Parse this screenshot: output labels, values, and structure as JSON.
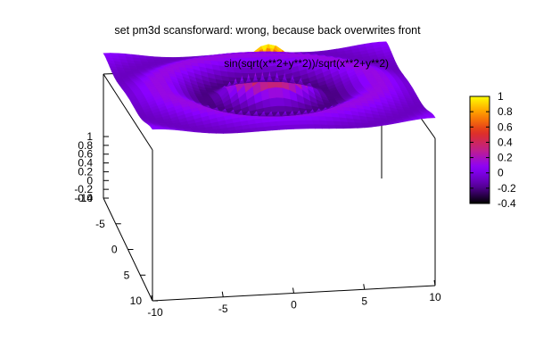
{
  "chart_data": {
    "type": "surface",
    "title": "set pm3d scansforward: wrong, because back overwrites front",
    "key_title": "sin(sqrt(x**2+y**2))/sqrt(x**2+y**2)",
    "function": "sin(sqrt(x**2+y**2))/sqrt(x**2+y**2)",
    "xlim": [
      -10,
      10
    ],
    "ylim": [
      -10,
      10
    ],
    "zlim": [
      -0.4,
      1
    ],
    "cbrange": [
      -0.4,
      1
    ],
    "x_ticks": [
      "-10",
      "-5",
      "0",
      "5",
      "10"
    ],
    "y_ticks": [
      "-10",
      "-5",
      "0",
      "5",
      "10"
    ],
    "z_ticks": [
      "1",
      "0.8",
      "0.6",
      "0.4",
      "0.2",
      "0",
      "-0.2",
      "-0.4"
    ],
    "cb_ticks": [
      "1",
      "0.8",
      "0.6",
      "0.4",
      "0.2",
      "0",
      "-0.2",
      "-0.4"
    ],
    "palette": [
      "#000000",
      "#5a00a0",
      "#8a00ff",
      "#c0208a",
      "#e03020",
      "#ff9000",
      "#ffff00"
    ],
    "pm3d": "scansforward"
  }
}
